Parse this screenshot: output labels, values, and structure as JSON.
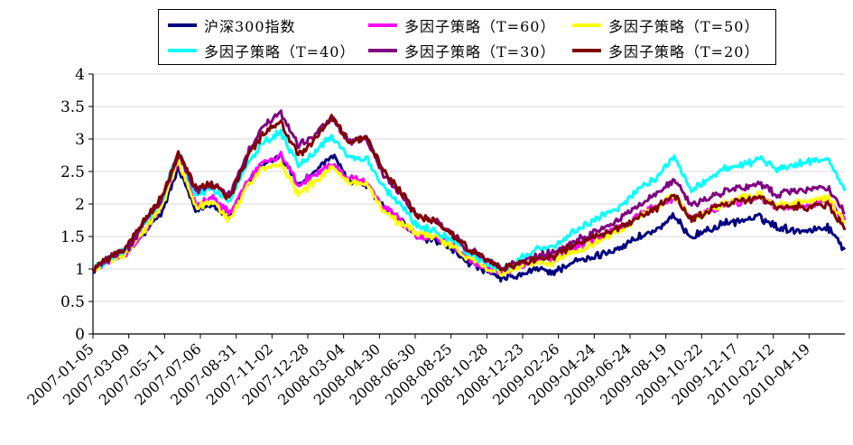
{
  "chart_data": {
    "type": "line",
    "y_ticks": [
      "0",
      "0.5",
      "1",
      "1.5",
      "2",
      "2.5",
      "3",
      "3.5",
      "4"
    ],
    "ylim": [
      0,
      4
    ],
    "x_tick_labels": [
      "2007-01-05",
      "2007-03-09",
      "2007-05-11",
      "2007-07-06",
      "2007-08-31",
      "2007-11-02",
      "2007-12-28",
      "2008-03-04",
      "2008-04-30",
      "2008-06-30",
      "2008-08-25",
      "2008-10-28",
      "2008-12-23",
      "2009-02-26",
      "2009-04-24",
      "2009-06-24",
      "2009-08-19",
      "2009-10-22",
      "2009-12-17",
      "2010-02-12",
      "2010-04-19"
    ],
    "grid": "horizontal",
    "legend_position": "top",
    "series": [
      {
        "name": "沪深300指数",
        "color": "#000080",
        "values": [
          1.0,
          1.15,
          1.25,
          1.55,
          1.85,
          2.55,
          1.9,
          2.0,
          1.8,
          2.3,
          2.6,
          2.75,
          2.3,
          2.5,
          2.75,
          2.35,
          2.3,
          1.95,
          1.75,
          1.5,
          1.45,
          1.3,
          1.1,
          0.95,
          0.85,
          0.9,
          1.0,
          0.95,
          1.1,
          1.15,
          1.25,
          1.35,
          1.5,
          1.6,
          1.8,
          1.5,
          1.6,
          1.7,
          1.75,
          1.8,
          1.65,
          1.6,
          1.6,
          1.65,
          1.3
        ]
      },
      {
        "name": "多因子策略（T=60）",
        "color": "#ff00ff",
        "values": [
          1.0,
          1.15,
          1.25,
          1.6,
          1.95,
          2.65,
          2.0,
          2.1,
          1.85,
          2.35,
          2.65,
          2.75,
          2.3,
          2.45,
          2.6,
          2.4,
          2.35,
          1.95,
          1.75,
          1.5,
          1.5,
          1.35,
          1.15,
          1.0,
          0.95,
          1.05,
          1.15,
          1.15,
          1.3,
          1.4,
          1.55,
          1.65,
          1.85,
          1.95,
          2.1,
          1.8,
          1.9,
          2.0,
          2.05,
          2.1,
          1.95,
          1.95,
          2.0,
          2.05,
          1.75
        ]
      },
      {
        "name": "多因子策略（T=50）",
        "color": "#ffff00",
        "values": [
          1.0,
          1.15,
          1.25,
          1.6,
          1.95,
          2.7,
          1.95,
          2.05,
          1.75,
          2.25,
          2.55,
          2.6,
          2.15,
          2.35,
          2.55,
          2.35,
          2.3,
          1.9,
          1.7,
          1.55,
          1.5,
          1.35,
          1.15,
          1.0,
          0.95,
          1.05,
          1.1,
          1.1,
          1.25,
          1.35,
          1.5,
          1.6,
          1.8,
          1.95,
          2.15,
          1.75,
          1.9,
          2.0,
          2.1,
          2.15,
          2.0,
          2.0,
          2.05,
          2.1,
          1.7
        ]
      },
      {
        "name": "多因子策略（T=40）",
        "color": "#00ffff",
        "values": [
          1.0,
          1.18,
          1.3,
          1.7,
          2.05,
          2.8,
          2.15,
          2.25,
          2.05,
          2.6,
          2.95,
          3.1,
          2.6,
          2.8,
          3.05,
          2.7,
          2.7,
          2.25,
          2.0,
          1.65,
          1.6,
          1.45,
          1.25,
          1.1,
          1.0,
          1.15,
          1.3,
          1.35,
          1.55,
          1.7,
          1.85,
          2.0,
          2.25,
          2.4,
          2.75,
          2.2,
          2.4,
          2.55,
          2.6,
          2.7,
          2.55,
          2.6,
          2.65,
          2.7,
          2.2
        ]
      },
      {
        "name": "多因子策略（T=30）",
        "color": "#800080",
        "values": [
          1.0,
          1.18,
          1.3,
          1.7,
          2.05,
          2.75,
          2.2,
          2.3,
          2.15,
          2.75,
          3.2,
          3.4,
          2.9,
          3.05,
          3.35,
          2.95,
          3.0,
          2.45,
          2.15,
          1.8,
          1.75,
          1.55,
          1.3,
          1.15,
          1.0,
          1.1,
          1.2,
          1.25,
          1.4,
          1.5,
          1.65,
          1.8,
          2.0,
          2.15,
          2.4,
          1.95,
          2.1,
          2.2,
          2.25,
          2.3,
          2.15,
          2.2,
          2.2,
          2.25,
          1.85
        ]
      },
      {
        "name": "多因子策略（T=20）",
        "color": "#800000",
        "values": [
          1.0,
          1.2,
          1.35,
          1.75,
          2.1,
          2.8,
          2.25,
          2.3,
          2.1,
          2.7,
          3.1,
          3.25,
          2.75,
          3.0,
          3.35,
          2.95,
          3.05,
          2.5,
          2.2,
          1.8,
          1.75,
          1.55,
          1.3,
          1.15,
          1.0,
          1.1,
          1.15,
          1.2,
          1.35,
          1.45,
          1.55,
          1.65,
          1.8,
          1.95,
          2.15,
          1.75,
          1.9,
          2.0,
          2.05,
          2.1,
          1.95,
          1.95,
          1.95,
          2.0,
          1.6
        ]
      }
    ]
  }
}
